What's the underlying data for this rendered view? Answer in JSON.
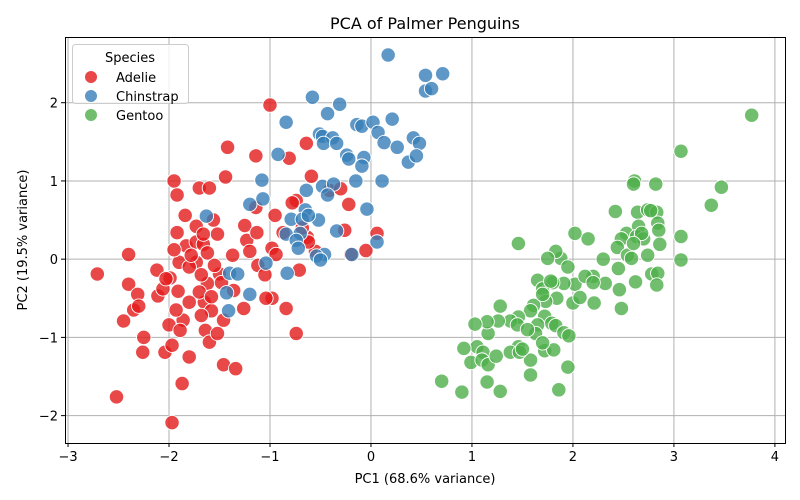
{
  "chart_data": {
    "type": "scatter",
    "title": "PCA of Palmer Penguins",
    "xlabel": "PC1 (68.6% variance)",
    "ylabel": "PC2 (19.5% variance)",
    "xlim": [
      -3.03,
      4.1
    ],
    "ylim": [
      -2.35,
      2.84
    ],
    "xticks": [
      -3,
      -2,
      -1,
      0,
      1,
      2,
      3,
      4
    ],
    "yticks": [
      -2,
      -1,
      0,
      1,
      2
    ],
    "xtick_labels": [
      "−3",
      "−2",
      "−1",
      "0",
      "1",
      "2",
      "3",
      "4"
    ],
    "ytick_labels": [
      "−2",
      "−1",
      "0",
      "1",
      "2"
    ],
    "grid": true,
    "legend": {
      "title": "Species",
      "placement": "top-left"
    },
    "series": [
      {
        "name": "Adelie",
        "color": "#e41a1c",
        "points": [
          [
            -2.71,
            -0.19
          ],
          [
            -2.52,
            -1.76
          ],
          [
            -2.4,
            0.06
          ],
          [
            -2.4,
            -0.32
          ],
          [
            -2.45,
            -0.79
          ],
          [
            -2.35,
            -0.65
          ],
          [
            -2.31,
            -0.45
          ],
          [
            -2.3,
            -0.6
          ],
          [
            -2.25,
            -1.0
          ],
          [
            -2.26,
            -1.19
          ],
          [
            -2.12,
            -0.14
          ],
          [
            -2.11,
            -0.47
          ],
          [
            -2.06,
            -0.38
          ],
          [
            -2.04,
            -1.19
          ],
          [
            -1.97,
            -2.09
          ],
          [
            -1.95,
            1.0
          ],
          [
            -1.92,
            0.82
          ],
          [
            -1.92,
            0.34
          ],
          [
            -1.99,
            -0.24
          ],
          [
            -2.0,
            -0.84
          ],
          [
            -1.97,
            -1.1
          ],
          [
            -1.87,
            -1.59
          ],
          [
            -1.91,
            -0.41
          ],
          [
            -1.9,
            -0.04
          ],
          [
            -1.83,
            0.17
          ],
          [
            -1.86,
            -0.78
          ],
          [
            -1.89,
            -0.91
          ],
          [
            -1.8,
            -1.25
          ],
          [
            -1.7,
            0.91
          ],
          [
            -1.6,
            0.91
          ],
          [
            -1.73,
            0.42
          ],
          [
            -1.73,
            0.22
          ],
          [
            -1.66,
            0.19
          ],
          [
            -1.56,
            0.5
          ],
          [
            -1.52,
            0.32
          ],
          [
            -1.73,
            -0.04
          ],
          [
            -1.62,
            -0.31
          ],
          [
            -1.5,
            -0.19
          ],
          [
            -1.65,
            -0.55
          ],
          [
            -1.58,
            -0.66
          ],
          [
            -1.64,
            -0.91
          ],
          [
            -1.6,
            -1.06
          ],
          [
            -1.46,
            -0.78
          ],
          [
            -1.42,
            1.43
          ],
          [
            -1.44,
            1.05
          ],
          [
            -1.46,
            -1.35
          ],
          [
            -1.34,
            -1.4
          ],
          [
            -1.36,
            -0.4
          ],
          [
            -1.26,
            -0.63
          ],
          [
            -1.25,
            0.43
          ],
          [
            -1.23,
            0.24
          ],
          [
            -1.14,
            1.32
          ],
          [
            -1.14,
            0.66
          ],
          [
            -1.13,
            0.34
          ],
          [
            -1.0,
            1.97
          ],
          [
            -0.81,
            1.29
          ],
          [
            -0.95,
            0.56
          ],
          [
            -0.98,
            0.14
          ],
          [
            -0.94,
            0.06
          ],
          [
            -0.87,
            0.34
          ],
          [
            -0.84,
            -0.63
          ],
          [
            -0.74,
            -0.95
          ],
          [
            -0.71,
            -0.14
          ],
          [
            -0.74,
            0.75
          ],
          [
            -0.64,
            1.48
          ],
          [
            -0.63,
            0.28
          ],
          [
            -0.59,
            1.06
          ],
          [
            -0.41,
            0.88
          ],
          [
            -0.22,
            0.7
          ],
          [
            -0.26,
            0.37
          ],
          [
            -0.2,
            0.06
          ],
          [
            -0.05,
            0.11
          ],
          [
            0.06,
            0.33
          ],
          [
            -0.98,
            -0.5
          ],
          [
            -1.04,
            -0.5
          ],
          [
            -1.12,
            -0.08
          ],
          [
            -1.37,
            0.05
          ],
          [
            -1.84,
            0.56
          ],
          [
            -1.8,
            -0.1
          ],
          [
            -1.68,
            -0.2
          ],
          [
            -1.55,
            -0.08
          ],
          [
            -1.78,
            0.05
          ],
          [
            -1.62,
            0.08
          ],
          [
            -1.48,
            -0.3
          ],
          [
            -1.7,
            -0.42
          ],
          [
            -1.58,
            -0.48
          ],
          [
            -1.8,
            -0.55
          ],
          [
            -1.68,
            -0.72
          ],
          [
            -1.52,
            -0.95
          ],
          [
            -1.93,
            -0.65
          ],
          [
            -2.03,
            -0.25
          ],
          [
            -1.95,
            0.12
          ],
          [
            -1.66,
            0.32
          ],
          [
            -1.2,
            0.1
          ],
          [
            -1.05,
            -0.2
          ],
          [
            -0.78,
            0.72
          ],
          [
            -0.68,
            0.4
          ],
          [
            -0.55,
            0.1
          ],
          [
            -0.3,
            0.9
          ],
          [
            -0.62,
            0.22
          ]
        ]
      },
      {
        "name": "Chinstrap",
        "color": "#377eb8",
        "points": [
          [
            0.17,
            2.61
          ],
          [
            0.54,
            2.35
          ],
          [
            0.71,
            2.37
          ],
          [
            0.54,
            2.15
          ],
          [
            0.6,
            2.18
          ],
          [
            -0.58,
            2.07
          ],
          [
            -0.31,
            1.98
          ],
          [
            -0.84,
            1.75
          ],
          [
            -0.43,
            1.86
          ],
          [
            -0.14,
            1.72
          ],
          [
            -0.09,
            1.7
          ],
          [
            0.02,
            1.75
          ],
          [
            0.21,
            1.79
          ],
          [
            0.07,
            1.62
          ],
          [
            0.13,
            1.49
          ],
          [
            0.26,
            1.43
          ],
          [
            0.42,
            1.55
          ],
          [
            0.48,
            1.48
          ],
          [
            0.37,
            1.24
          ],
          [
            0.45,
            1.32
          ],
          [
            -0.51,
            1.6
          ],
          [
            -0.48,
            1.57
          ],
          [
            -0.38,
            1.55
          ],
          [
            -0.47,
            1.48
          ],
          [
            -0.34,
            1.48
          ],
          [
            -0.24,
            1.33
          ],
          [
            -0.22,
            1.28
          ],
          [
            -0.07,
            1.3
          ],
          [
            -0.09,
            1.19
          ],
          [
            -0.15,
            1.0
          ],
          [
            0.11,
            1.0
          ],
          [
            -0.48,
            0.93
          ],
          [
            -0.37,
            0.96
          ],
          [
            -0.43,
            0.82
          ],
          [
            -0.64,
            0.88
          ],
          [
            -0.65,
            0.63
          ],
          [
            -0.92,
            1.34
          ],
          [
            -1.08,
            1.01
          ],
          [
            -1.07,
            0.77
          ],
          [
            -1.2,
            0.7
          ],
          [
            -0.79,
            0.51
          ],
          [
            -0.52,
            0.5
          ],
          [
            -0.68,
            0.51
          ],
          [
            -0.7,
            0.33
          ],
          [
            -0.84,
            0.32
          ],
          [
            -0.74,
            0.24
          ],
          [
            -0.34,
            0.36
          ],
          [
            -0.04,
            0.64
          ],
          [
            0.06,
            0.22
          ],
          [
            -0.19,
            0.06
          ],
          [
            -0.46,
            0.06
          ],
          [
            -0.54,
            0.04
          ],
          [
            -0.5,
            -0.01
          ],
          [
            -0.83,
            -0.18
          ],
          [
            -1.04,
            -0.05
          ],
          [
            -1.4,
            -0.18
          ],
          [
            -1.32,
            -0.19
          ],
          [
            -1.2,
            -0.45
          ],
          [
            -1.43,
            -0.43
          ],
          [
            -1.41,
            -0.66
          ],
          [
            -1.63,
            0.55
          ],
          [
            -0.62,
            0.56
          ],
          [
            -0.72,
            0.14
          ]
        ]
      },
      {
        "name": "Gentoo",
        "color": "#4daf4a",
        "points": [
          [
            3.77,
            1.84
          ],
          [
            3.07,
            1.38
          ],
          [
            3.47,
            0.92
          ],
          [
            3.37,
            0.69
          ],
          [
            3.07,
            0.29
          ],
          [
            3.07,
            -0.01
          ],
          [
            2.61,
            1.0
          ],
          [
            2.6,
            0.96
          ],
          [
            2.82,
            0.96
          ],
          [
            2.42,
            0.61
          ],
          [
            2.64,
            0.6
          ],
          [
            2.74,
            0.63
          ],
          [
            2.83,
            0.6
          ],
          [
            2.84,
            0.46
          ],
          [
            2.85,
            0.37
          ],
          [
            2.86,
            0.19
          ],
          [
            2.65,
            0.42
          ],
          [
            2.53,
            0.33
          ],
          [
            2.48,
            0.26
          ],
          [
            2.63,
            0.29
          ],
          [
            2.7,
            0.26
          ],
          [
            2.44,
            0.15
          ],
          [
            2.54,
            0.05
          ],
          [
            2.58,
            0.01
          ],
          [
            2.74,
            0.05
          ],
          [
            2.78,
            -0.19
          ],
          [
            2.84,
            -0.18
          ],
          [
            2.83,
            -0.33
          ],
          [
            2.62,
            -0.29
          ],
          [
            2.46,
            -0.39
          ],
          [
            2.48,
            -0.63
          ],
          [
            2.32,
            -0.31
          ],
          [
            2.21,
            -0.56
          ],
          [
            2.02,
            -0.32
          ],
          [
            2.0,
            -0.56
          ],
          [
            2.2,
            -0.22
          ],
          [
            2.12,
            -0.22
          ],
          [
            2.07,
            -0.49
          ],
          [
            2.15,
            0.26
          ],
          [
            2.02,
            0.33
          ],
          [
            1.88,
            0.01
          ],
          [
            1.83,
            0.1
          ],
          [
            1.75,
            0.01
          ],
          [
            1.91,
            -0.31
          ],
          [
            1.8,
            -0.3
          ],
          [
            1.65,
            -0.27
          ],
          [
            1.7,
            -0.38
          ],
          [
            1.84,
            -0.5
          ],
          [
            1.73,
            -0.54
          ],
          [
            1.61,
            -0.59
          ],
          [
            1.58,
            -0.66
          ],
          [
            1.46,
            -0.74
          ],
          [
            1.38,
            -0.79
          ],
          [
            1.45,
            -0.84
          ],
          [
            1.26,
            -0.79
          ],
          [
            1.72,
            -0.73
          ],
          [
            1.79,
            -0.82
          ],
          [
            1.83,
            -0.85
          ],
          [
            1.65,
            -0.84
          ],
          [
            1.91,
            -0.94
          ],
          [
            1.63,
            -0.95
          ],
          [
            1.72,
            -1.17
          ],
          [
            1.81,
            -1.16
          ],
          [
            1.96,
            -0.98
          ],
          [
            1.95,
            -1.38
          ],
          [
            1.86,
            -1.67
          ],
          [
            1.58,
            -1.48
          ],
          [
            1.58,
            -1.29
          ],
          [
            1.7,
            -1.07
          ],
          [
            1.46,
            -1.12
          ],
          [
            1.38,
            -1.19
          ],
          [
            1.47,
            -1.19
          ],
          [
            1.16,
            -0.95
          ],
          [
            1.15,
            -0.8
          ],
          [
            1.28,
            -0.6
          ],
          [
            1.03,
            -0.83
          ],
          [
            1.05,
            -1.12
          ],
          [
            0.92,
            -1.14
          ],
          [
            0.99,
            -1.32
          ],
          [
            1.11,
            -1.19
          ],
          [
            1.1,
            -1.29
          ],
          [
            1.16,
            -1.35
          ],
          [
            1.24,
            -1.24
          ],
          [
            1.15,
            -1.57
          ],
          [
            1.28,
            -1.69
          ],
          [
            0.9,
            -1.7
          ],
          [
            0.7,
            -1.56
          ],
          [
            1.46,
            0.2
          ],
          [
            2.45,
            -0.12
          ],
          [
            2.3,
            0.0
          ],
          [
            1.7,
            -0.45
          ],
          [
            1.55,
            -0.9
          ],
          [
            1.5,
            -1.15
          ],
          [
            2.2,
            -0.3
          ],
          [
            2.68,
            0.33
          ],
          [
            2.77,
            0.62
          ],
          [
            2.6,
            0.2
          ],
          [
            1.78,
            -0.28
          ],
          [
            1.95,
            -0.1
          ]
        ]
      }
    ]
  }
}
